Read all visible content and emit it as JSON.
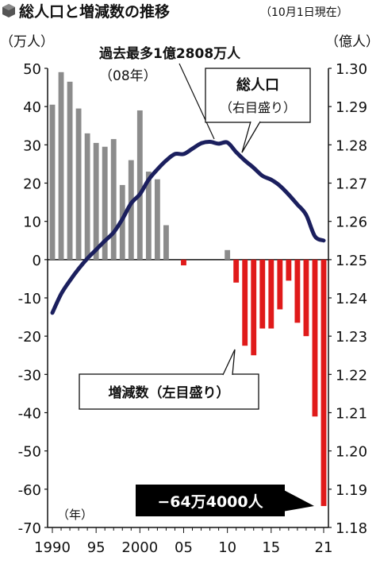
{
  "title": "総人口と増減数の推移",
  "subtitle": "（10月1日現在）",
  "left_unit": "（万人）",
  "right_unit": "（億人）",
  "year_label": "（年）",
  "population_callout": {
    "line1": "過去最多1億2808万人",
    "line2": "（08年）"
  },
  "population_series_label": {
    "line1": "総人口",
    "line2": "（右目盛り）"
  },
  "change_series_label": "増減数（左目盛り）",
  "final_callout": "−64万4000人",
  "colors": {
    "positive_bar": "#8c8c8c",
    "negative_bar": "#e01a1a",
    "population_line": "#1b1f5e",
    "title_icon": "#555555"
  },
  "chart_data": {
    "type": "bar+line",
    "x": [
      1990,
      1991,
      1992,
      1993,
      1994,
      1995,
      1996,
      1997,
      1998,
      1999,
      2000,
      2001,
      2002,
      2003,
      2004,
      2005,
      2006,
      2007,
      2008,
      2009,
      2010,
      2011,
      2012,
      2013,
      2014,
      2015,
      2016,
      2017,
      2018,
      2019,
      2020,
      2021
    ],
    "x_tick_labels": [
      "1990",
      "95",
      "2000",
      "05",
      "10",
      "15",
      "21"
    ],
    "x_tick_years": [
      1990,
      1995,
      2000,
      2005,
      2010,
      2015,
      2021
    ],
    "series": [
      {
        "name": "増減数（左目盛り）",
        "axis": "left",
        "type": "bar",
        "values": [
          40.5,
          49,
          46.5,
          39.5,
          33,
          30.5,
          29.5,
          31.5,
          19.5,
          26,
          39,
          23,
          21,
          9,
          0,
          -1.5,
          0,
          0,
          0,
          0,
          2.5,
          -6,
          -22.5,
          -25,
          -18,
          -18,
          -13,
          -5.5,
          -16.5,
          -20,
          -41,
          -64.4
        ]
      },
      {
        "name": "総人口（右目盛り）",
        "axis": "right",
        "type": "line",
        "values": [
          1.2361,
          1.241,
          1.2445,
          1.2476,
          1.2503,
          1.2526,
          1.2549,
          1.2571,
          1.2606,
          1.2647,
          1.2671,
          1.2709,
          1.2736,
          1.2759,
          1.2776,
          1.2776,
          1.279,
          1.2804,
          1.2808,
          1.2803,
          1.2806,
          1.2781,
          1.2759,
          1.274,
          1.2719,
          1.2709,
          1.2693,
          1.267,
          1.2644,
          1.2617,
          1.2561,
          1.255
        ]
      }
    ],
    "left_axis": {
      "range": [
        -70,
        50
      ],
      "ticks": [
        50,
        40,
        30,
        20,
        10,
        0,
        -10,
        -20,
        -30,
        -40,
        -50,
        -60,
        -70
      ]
    },
    "right_axis": {
      "range": [
        1.18,
        1.3
      ],
      "ticks": [
        "1.30",
        "1.29",
        "1.28",
        "1.27",
        "1.26",
        "1.25",
        "1.24",
        "1.23",
        "1.22",
        "1.21",
        "1.20",
        "1.19",
        "1.18"
      ]
    }
  }
}
